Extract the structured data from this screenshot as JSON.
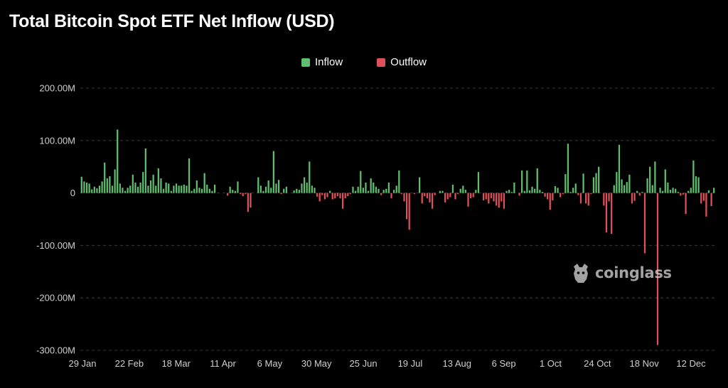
{
  "chart_data": {
    "type": "bar",
    "title": "Total Bitcoin Spot ETF Net Inflow (USD)",
    "legend": [
      {
        "name": "Inflow",
        "color": "#5fbf6f"
      },
      {
        "name": "Outflow",
        "color": "#e0505a"
      }
    ],
    "legend_position": "top-center",
    "y_ticks": [
      {
        "value": 200,
        "label": "200.00M"
      },
      {
        "value": 100,
        "label": "100.00M"
      },
      {
        "value": 0,
        "label": "0"
      },
      {
        "value": -100,
        "label": "-100.00M"
      },
      {
        "value": -200,
        "label": "-200.00M"
      },
      {
        "value": -300,
        "label": "-300.00M"
      }
    ],
    "x_ticks": [
      "29 Jan",
      "22 Feb",
      "18 Mar",
      "11 Apr",
      "6 May",
      "30 May",
      "25 Jun",
      "19 Jul",
      "13 Aug",
      "6 Sep",
      "1 Oct",
      "24 Oct",
      "18 Nov",
      "12 Dec"
    ],
    "ylim": [
      -300,
      200
    ],
    "y_unit": "M USD",
    "grid": "horizontal dashed",
    "values": [
      31,
      22,
      20,
      18,
      7,
      12,
      9,
      14,
      22,
      58,
      28,
      32,
      14,
      45,
      121,
      18,
      10,
      4,
      10,
      14,
      35,
      20,
      12,
      20,
      40,
      85,
      14,
      24,
      35,
      14,
      47,
      28,
      8,
      20,
      18,
      4,
      14,
      18,
      14,
      14,
      16,
      14,
      66,
      4,
      8,
      24,
      10,
      8,
      38,
      16,
      8,
      4,
      16,
      0,
      0,
      0,
      0,
      -5,
      12,
      6,
      4,
      22,
      -2,
      -6,
      -2,
      -36,
      -28,
      0,
      0,
      30,
      14,
      4,
      12,
      24,
      10,
      80,
      18,
      25,
      -2,
      8,
      12,
      0,
      0,
      5,
      8,
      6,
      18,
      30,
      20,
      60,
      14,
      10,
      -7,
      -16,
      -4,
      -12,
      -8,
      4,
      -12,
      -10,
      -6,
      -10,
      -30,
      -10,
      -6,
      -2,
      12,
      4,
      12,
      42,
      10,
      20,
      4,
      28,
      20,
      12,
      8,
      -4,
      6,
      8,
      20,
      -10,
      6,
      14,
      43,
      -2,
      -16,
      -50,
      -70,
      0,
      -2,
      0,
      30,
      -20,
      -6,
      -10,
      -18,
      -30,
      -4,
      0,
      4,
      4,
      -18,
      -12,
      -8,
      16,
      -12,
      -2,
      8,
      14,
      6,
      -26,
      -10,
      -8,
      6,
      40,
      0,
      -14,
      -12,
      -20,
      -10,
      -16,
      -24,
      -28,
      -16,
      -30,
      4,
      6,
      2,
      20,
      0,
      -5,
      43,
      4,
      43,
      5,
      12,
      8,
      47,
      6,
      2,
      -7,
      -12,
      -32,
      -14,
      13,
      10,
      -8,
      -2,
      36,
      94,
      2,
      10,
      18,
      -4,
      -20,
      37,
      -20,
      -24,
      -2,
      30,
      38,
      50,
      0,
      -24,
      -75,
      -16,
      -78,
      15,
      40,
      92,
      26,
      15,
      21,
      35,
      -20,
      -15,
      4,
      -5,
      2,
      -115,
      28,
      50,
      15,
      60,
      -290,
      10,
      4,
      45,
      20,
      6,
      10,
      8,
      2,
      -5,
      -3,
      -40,
      4,
      10,
      62,
      32,
      30,
      -20,
      -15,
      -45,
      5,
      -25,
      10
    ]
  },
  "watermark": {
    "text": "coinglass",
    "icon": "coinglass-logo-icon"
  }
}
